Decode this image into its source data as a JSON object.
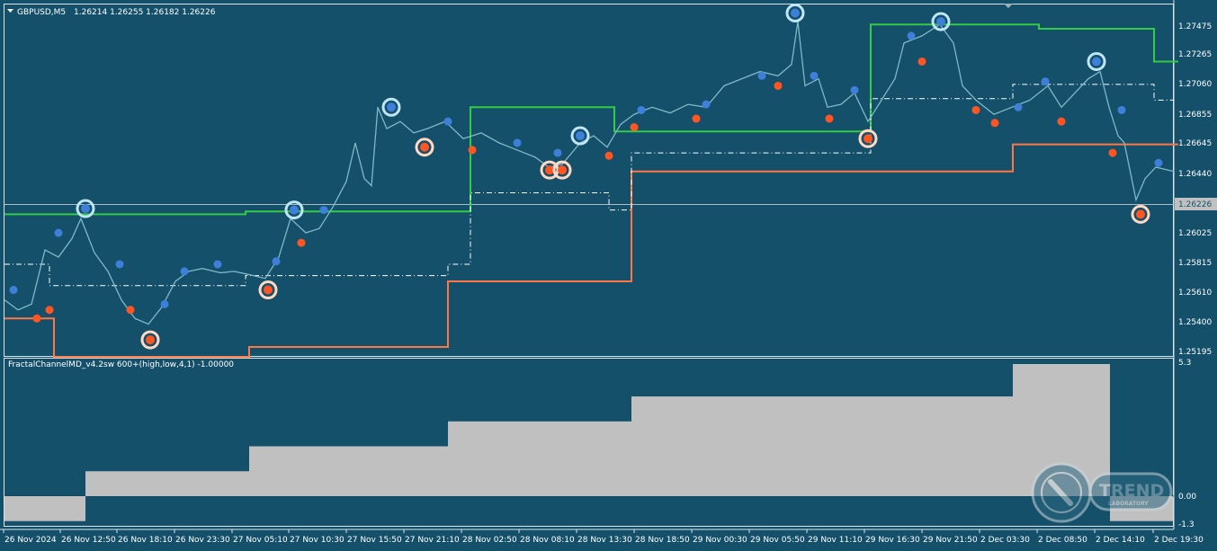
{
  "header": {
    "symbol": "GBPUSD,M5",
    "ohlc": "1.26214 1.26255 1.26182 1.26226"
  },
  "price_axis": {
    "ticks": [
      "1.27475",
      "1.27265",
      "1.27060",
      "1.26855",
      "1.26645",
      "1.26440",
      "1.26226",
      "1.26025",
      "1.25815",
      "1.25610",
      "1.25400",
      "1.25195"
    ],
    "current_price": "1.26226"
  },
  "indicator": {
    "name": "FractalChannelMD_v4.2sw 600+(high,low,4,1) -1.00000",
    "axis_ticks": [
      "5.3",
      "0.00",
      "-1.3"
    ]
  },
  "time_axis": [
    "26 Nov 2024",
    "26 Nov 12:50",
    "26 Nov 18:10",
    "26 Nov 23:30",
    "27 Nov 05:10",
    "27 Nov 10:30",
    "27 Nov 15:50",
    "27 Nov 21:10",
    "28 Nov 02:50",
    "28 Nov 08:10",
    "28 Nov 13:30",
    "28 Nov 18:50",
    "29 Nov 00:30",
    "29 Nov 05:50",
    "29 Nov 11:10",
    "29 Nov 16:30",
    "29 Nov 21:50",
    "2 Dec 03:30",
    "2 Dec 08:50",
    "2 Dec 14:10",
    "2 Dec 19:30"
  ],
  "watermark": {
    "word": "TREND",
    "sub": "LABORATORY"
  },
  "colors": {
    "background": "#15506a",
    "price_line": "#7fb8c8",
    "upper_channel": "#33cc44",
    "lower_channel": "#ff7744",
    "mid_dashdot": "#ffffff",
    "fractal_up": "#3d7fd9",
    "fractal_down": "#ff5522",
    "histogram": "#c0c0c0",
    "text": "#ffffff"
  },
  "chart_data": [
    {
      "type": "line",
      "title": "GBPUSD,M5",
      "ylim": [
        1.251,
        1.2765
      ],
      "series": [
        {
          "name": "upper",
          "x": [
            0,
            90,
            268,
            518,
            678,
            963,
            1150,
            1278,
            1305
          ],
          "values": [
            1.2615,
            1.2615,
            1.2617,
            1.269,
            1.2673,
            1.2748,
            1.2745,
            1.2722,
            1.2722
          ]
        },
        {
          "name": "lower",
          "x": [
            0,
            55,
            272,
            493,
            697,
            1121,
            1305
          ],
          "values": [
            1.2542,
            1.2515,
            1.2522,
            1.2568,
            1.2645,
            1.2664,
            1.2664
          ]
        }
      ]
    },
    {
      "type": "bar",
      "title": "FractalChannelMD_v4.2sw 600+(high,low,4,1) -1.00000",
      "ylim": [
        -1.3,
        5.3
      ],
      "x": [
        0,
        90,
        272,
        493,
        697,
        1121,
        1229
      ],
      "values": [
        -1.0,
        1.0,
        2.0,
        3.0,
        4.0,
        5.3,
        -1.0
      ]
    }
  ]
}
